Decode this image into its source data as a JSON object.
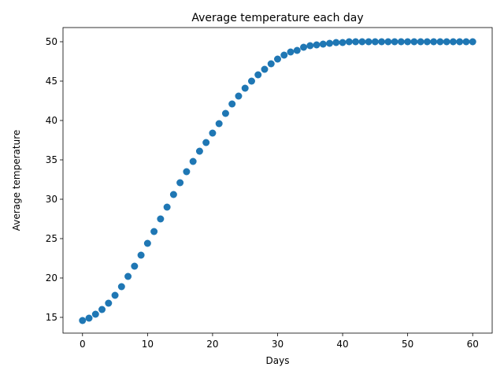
{
  "chart_data": {
    "type": "scatter",
    "title": "Average temperature each day",
    "xlabel": "Days",
    "ylabel": "Average temperature",
    "xlim": [
      -3,
      63
    ],
    "ylim": [
      13.0,
      51.8
    ],
    "xticks": [
      0,
      10,
      20,
      30,
      40,
      50,
      60
    ],
    "yticks": [
      15,
      20,
      25,
      30,
      35,
      40,
      45,
      50
    ],
    "grid": false,
    "marker_color": "#1f77b4",
    "x": [
      0,
      1,
      2,
      3,
      4,
      5,
      6,
      7,
      8,
      9,
      10,
      11,
      12,
      13,
      14,
      15,
      16,
      17,
      18,
      19,
      20,
      21,
      22,
      23,
      24,
      25,
      26,
      27,
      28,
      29,
      30,
      31,
      32,
      33,
      34,
      35,
      36,
      37,
      38,
      39,
      40,
      41,
      42,
      43,
      44,
      45,
      46,
      47,
      48,
      49,
      50,
      51,
      52,
      53,
      54,
      55,
      56,
      57,
      58,
      59,
      60
    ],
    "y": [
      14.6,
      14.9,
      15.4,
      16.0,
      16.8,
      17.8,
      18.9,
      20.2,
      21.5,
      22.9,
      24.4,
      25.9,
      27.5,
      29.0,
      30.6,
      32.1,
      33.5,
      34.8,
      36.1,
      37.2,
      38.4,
      39.6,
      40.9,
      42.1,
      43.1,
      44.1,
      45.0,
      45.8,
      46.5,
      47.2,
      47.8,
      48.3,
      48.7,
      48.9,
      49.3,
      49.5,
      49.6,
      49.7,
      49.8,
      49.9,
      49.9,
      50.0,
      50.0,
      50.0,
      50.0,
      50.0,
      50.0,
      50.0,
      50.0,
      50.0,
      50.0,
      50.0,
      50.0,
      50.0,
      50.0,
      50.0,
      50.0,
      50.0,
      50.0,
      50.0,
      50.0
    ]
  }
}
